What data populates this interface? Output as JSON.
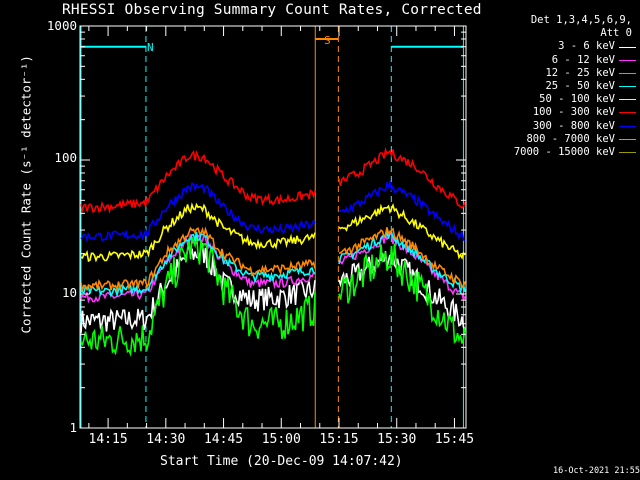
{
  "title": "RHESSI Observing Summary Count Rates, Corrected",
  "timestamp": "16-Oct-2021 21:55",
  "chart_data": {
    "type": "line",
    "title": "RHESSI Observing Summary Count Rates, Corrected",
    "xlabel": "Start Time (20-Dec-09 14:07:42)",
    "ylabel": "Corrected Count Rate (s⁻¹ detector⁻¹)",
    "yscale": "log",
    "ylim": [
      1,
      1000
    ],
    "xlim": [
      "14:07:42",
      "15:48:00"
    ],
    "yticks": [
      "1",
      "10",
      "100",
      "1000"
    ],
    "xticks": [
      "14:15",
      "14:30",
      "14:45",
      "15:00",
      "15:15",
      "15:30",
      "15:45"
    ],
    "legend_header": [
      "Det 1,3,4,5,6,9,",
      "Att 0"
    ],
    "legend_position": "top-right",
    "series": [
      {
        "name": "3 - 6 keV",
        "color": "#ffffff",
        "points": [
          [
            "14:08",
            6.3
          ],
          [
            "14:15",
            6.3
          ],
          [
            "14:25",
            6.5
          ],
          [
            "14:30",
            12
          ],
          [
            "14:36",
            20
          ],
          [
            "14:40",
            20
          ],
          [
            "14:45",
            12
          ],
          [
            "14:52",
            9
          ],
          [
            "15:00",
            9.5
          ],
          [
            "15:10",
            11
          ],
          [
            "15:20",
            14
          ],
          [
            "15:28",
            19.5
          ],
          [
            "15:35",
            13
          ],
          [
            "15:40",
            9.5
          ],
          [
            "15:47",
            6.5
          ]
        ]
      },
      {
        "name": "6 - 12 keV",
        "color": "#ff33ff",
        "points": [
          [
            "14:08",
            9.5
          ],
          [
            "14:15",
            9.5
          ],
          [
            "14:25",
            10
          ],
          [
            "14:30",
            17
          ],
          [
            "14:36",
            26
          ],
          [
            "14:40",
            26
          ],
          [
            "14:45",
            17
          ],
          [
            "14:52",
            12
          ],
          [
            "15:00",
            12
          ],
          [
            "15:10",
            14
          ],
          [
            "15:20",
            20
          ],
          [
            "15:28",
            27
          ],
          [
            "15:35",
            19
          ],
          [
            "15:40",
            14
          ],
          [
            "15:47",
            9.5
          ]
        ]
      },
      {
        "name": "12 - 25 keV",
        "color": "#00ff00",
        "points": [
          [
            "14:08",
            4.5
          ],
          [
            "14:15",
            4.5
          ],
          [
            "14:25",
            4.8
          ],
          [
            "14:30",
            11
          ],
          [
            "14:36",
            22
          ],
          [
            "14:40",
            22
          ],
          [
            "14:45",
            11
          ],
          [
            "14:52",
            6
          ],
          [
            "15:00",
            6
          ],
          [
            "15:10",
            8
          ],
          [
            "15:20",
            13
          ],
          [
            "15:28",
            19.5
          ],
          [
            "15:35",
            12
          ],
          [
            "15:40",
            8
          ],
          [
            "15:47",
            4.5
          ]
        ]
      },
      {
        "name": "25 - 50 keV",
        "color": "#00ffff",
        "points": [
          [
            "14:08",
            10.5
          ],
          [
            "14:15",
            10.5
          ],
          [
            "14:25",
            11
          ],
          [
            "14:30",
            18
          ],
          [
            "14:36",
            27
          ],
          [
            "14:40",
            27
          ],
          [
            "14:45",
            18
          ],
          [
            "14:52",
            13.5
          ],
          [
            "15:00",
            14
          ],
          [
            "15:10",
            15.5
          ],
          [
            "15:20",
            21
          ],
          [
            "15:28",
            28
          ],
          [
            "15:35",
            20
          ],
          [
            "15:40",
            15
          ],
          [
            "15:47",
            11
          ]
        ]
      },
      {
        "name": "50 - 100 keV",
        "color": "#ffff00",
        "points": [
          [
            "14:08",
            19
          ],
          [
            "14:15",
            19
          ],
          [
            "14:25",
            20
          ],
          [
            "14:30",
            31
          ],
          [
            "14:36",
            44
          ],
          [
            "14:40",
            43
          ],
          [
            "14:45",
            31
          ],
          [
            "14:52",
            24
          ],
          [
            "15:00",
            24
          ],
          [
            "15:10",
            27
          ],
          [
            "15:20",
            35
          ],
          [
            "15:28",
            45
          ],
          [
            "15:35",
            33
          ],
          [
            "15:40",
            26
          ],
          [
            "15:47",
            19
          ]
        ]
      },
      {
        "name": "100 - 300 keV",
        "color": "#ff0000",
        "points": [
          [
            "14:08",
            44
          ],
          [
            "14:15",
            45
          ],
          [
            "14:25",
            48
          ],
          [
            "14:30",
            75
          ],
          [
            "14:36",
            108
          ],
          [
            "14:40",
            106
          ],
          [
            "14:45",
            75
          ],
          [
            "14:52",
            52
          ],
          [
            "15:00",
            50
          ],
          [
            "15:10",
            57
          ],
          [
            "15:20",
            80
          ],
          [
            "15:28",
            115
          ],
          [
            "15:35",
            90
          ],
          [
            "15:40",
            66
          ],
          [
            "15:47",
            46
          ]
        ]
      },
      {
        "name": "300 - 800 keV",
        "color": "#0000ff",
        "points": [
          [
            "14:08",
            27
          ],
          [
            "14:15",
            27
          ],
          [
            "14:25",
            28
          ],
          [
            "14:30",
            44
          ],
          [
            "14:36",
            63
          ],
          [
            "14:40",
            62
          ],
          [
            "14:45",
            44
          ],
          [
            "14:52",
            31
          ],
          [
            "15:00",
            30
          ],
          [
            "15:10",
            34
          ],
          [
            "15:20",
            47
          ],
          [
            "15:28",
            65
          ],
          [
            "15:35",
            50
          ],
          [
            "15:40",
            38
          ],
          [
            "15:47",
            27
          ]
        ]
      },
      {
        "name": "800 - 7000 keV",
        "color": "#ff8800",
        "points": [
          [
            "14:08",
            11.5
          ],
          [
            "14:15",
            11.5
          ],
          [
            "14:25",
            12
          ],
          [
            "14:30",
            20
          ],
          [
            "14:36",
            29
          ],
          [
            "14:40",
            29
          ],
          [
            "14:45",
            20
          ],
          [
            "14:52",
            15
          ],
          [
            "15:00",
            15.5
          ],
          [
            "15:10",
            17
          ],
          [
            "15:20",
            23
          ],
          [
            "15:28",
            30
          ],
          [
            "15:35",
            22
          ],
          [
            "15:40",
            16
          ],
          [
            "15:47",
            12
          ]
        ]
      },
      {
        "name": "7000 - 15000 keV",
        "color": "#999900",
        "points": []
      }
    ],
    "markers": {
      "night_label": "N",
      "saa_label": "S",
      "night_level": 700,
      "saa_level": 800,
      "night_intervals": [
        [
          "14:07:42",
          "14:24:50"
        ],
        [
          "15:28:20",
          "15:47:20"
        ]
      ],
      "saa_interval": [
        "15:08:50",
        "15:14:50"
      ]
    }
  }
}
